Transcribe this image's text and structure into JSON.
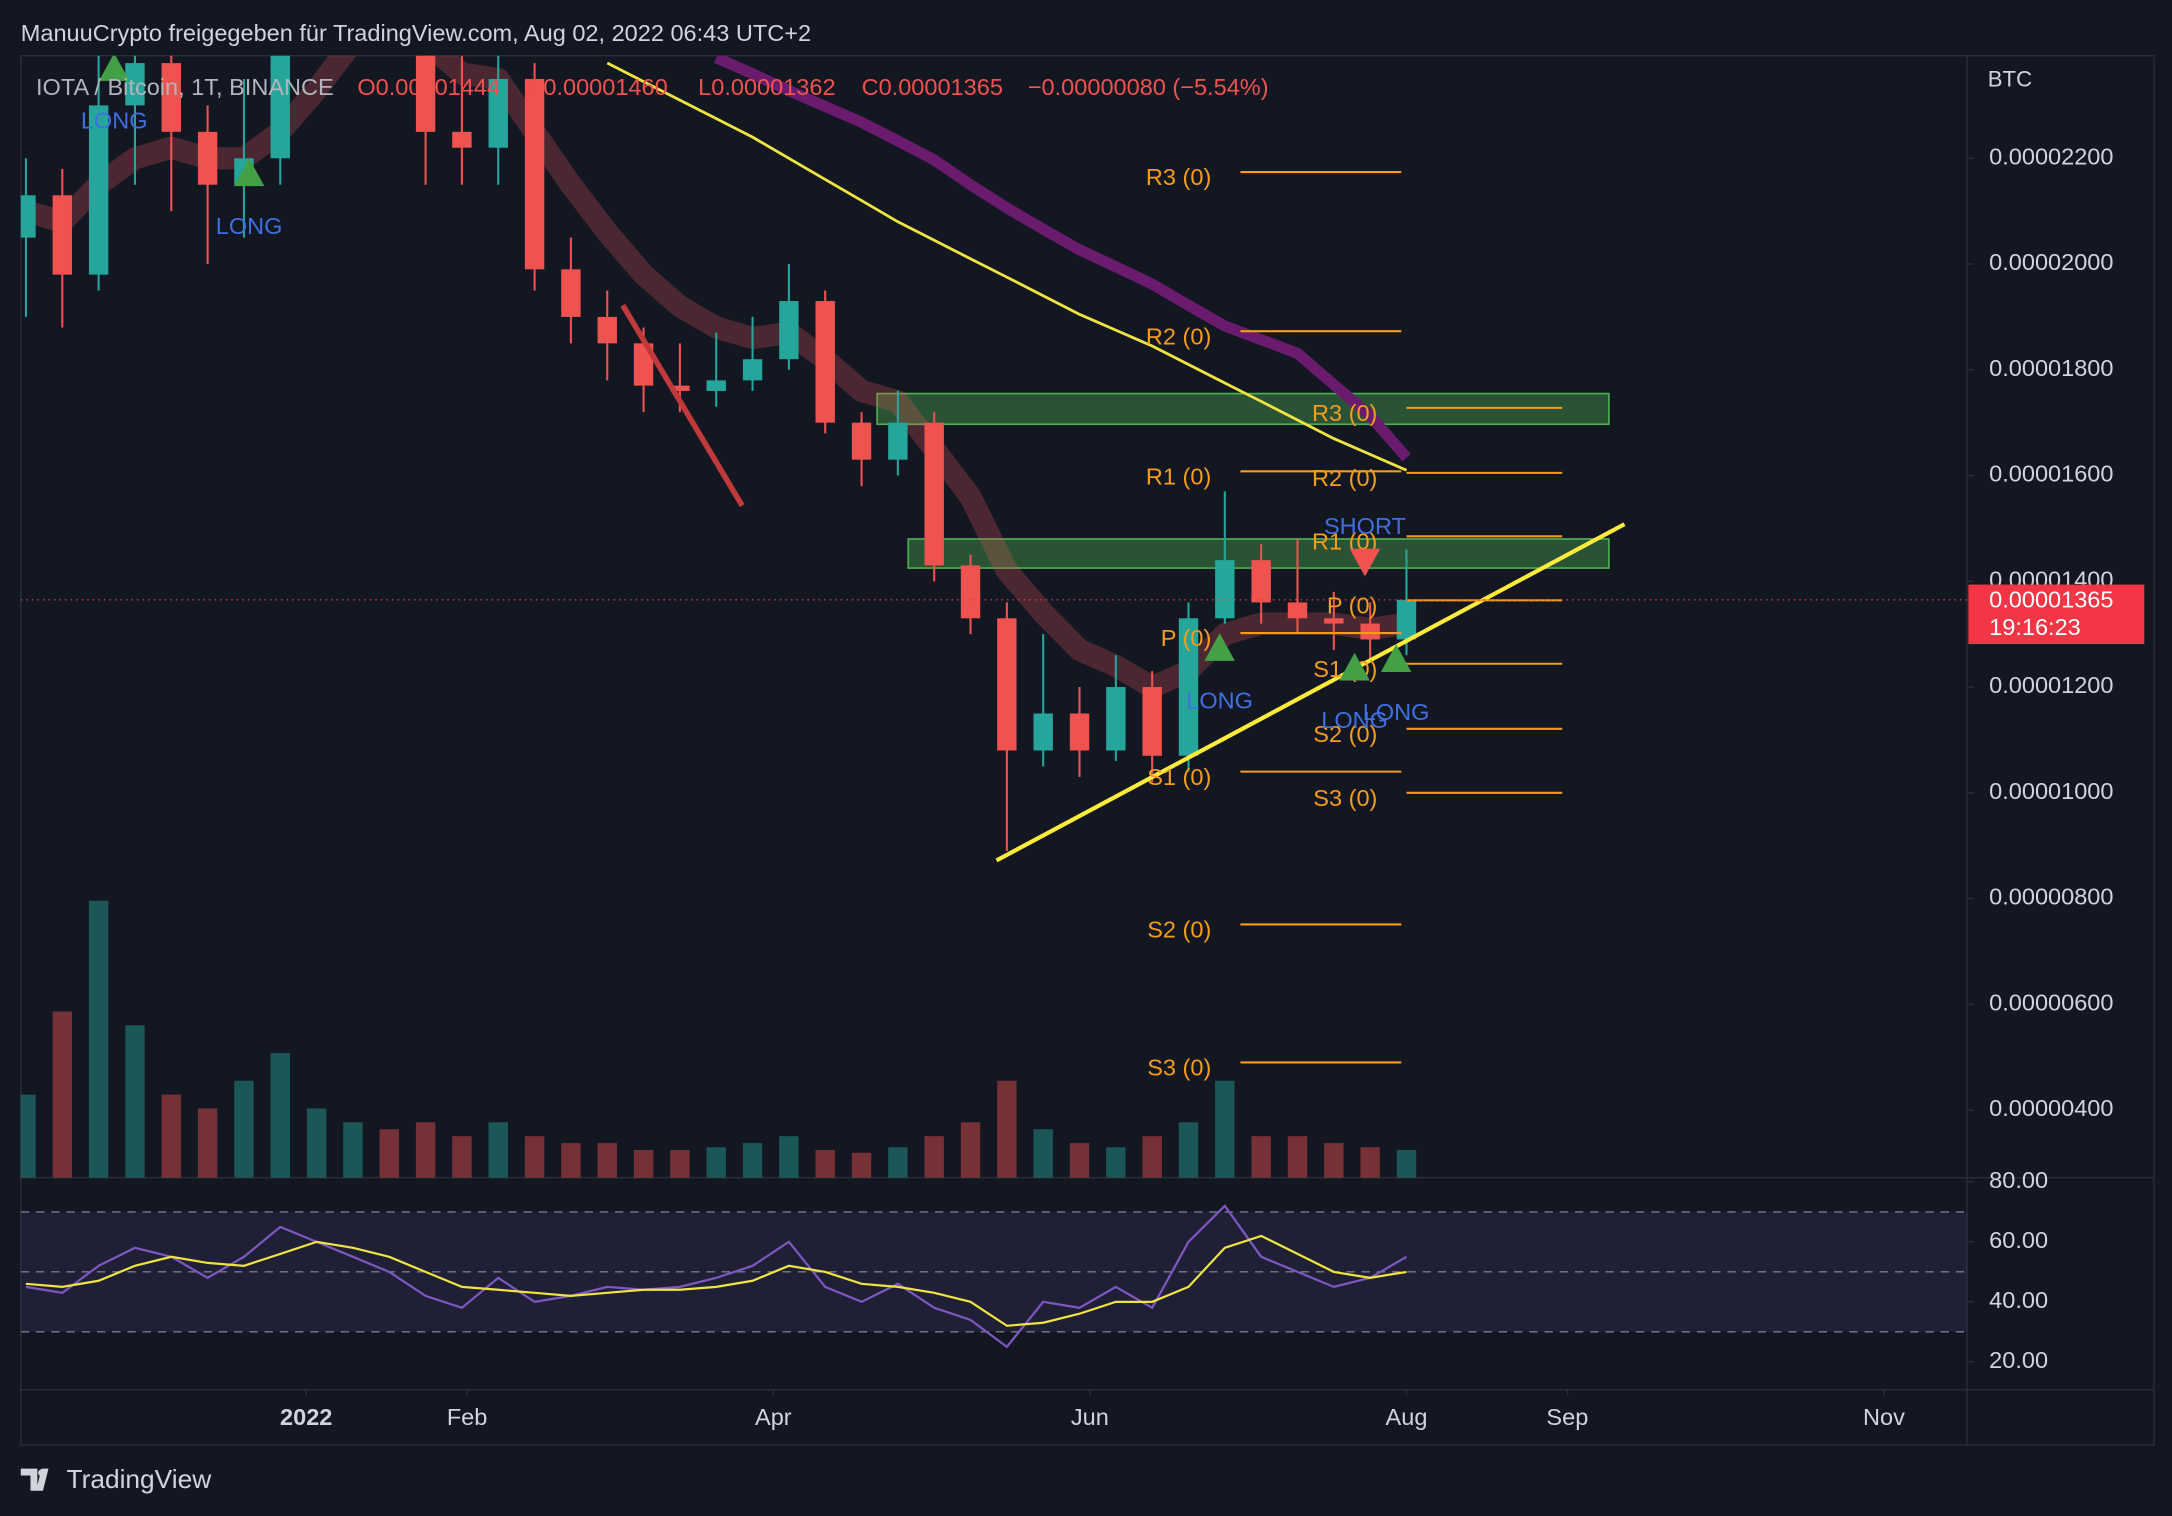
{
  "header": "ManuuCrypto freigegeben für TradingView.com, Aug 02, 2022 06:43 UTC+2",
  "footer": "TradingView",
  "chart_data": {
    "type": "candlestick",
    "legend": {
      "symbol": "IOTA / Bitcoin, 1T, BINANCE",
      "open": "O0.00001444",
      "high": "H0.00001460",
      "low": "L0.00001362",
      "close": "C0.00001365",
      "change": "−0.00000080 (−5.54%)"
    },
    "currency": "BTC",
    "up_color": "#26a69a",
    "down_color": "#ef5350",
    "x": [
      "2021-11-08",
      "2021-11-15",
      "2021-11-22",
      "2021-11-29",
      "2021-12-06",
      "2021-12-13",
      "2021-12-20",
      "2021-12-27",
      "2022-01-03",
      "2022-01-10",
      "2022-01-17",
      "2022-01-24",
      "2022-01-31",
      "2022-02-07",
      "2022-02-14",
      "2022-02-21",
      "2022-02-28",
      "2022-03-07",
      "2022-03-14",
      "2022-03-21",
      "2022-03-28",
      "2022-04-04",
      "2022-04-11",
      "2022-04-18",
      "2022-04-25",
      "2022-05-02",
      "2022-05-09",
      "2022-05-16",
      "2022-05-23",
      "2022-05-30",
      "2022-06-06",
      "2022-06-13",
      "2022-06-20",
      "2022-06-27",
      "2022-07-04",
      "2022-07-11",
      "2022-07-18",
      "2022-07-25",
      "2022-08-01"
    ],
    "open": [
      2.05e-05,
      2.13e-05,
      1.98e-05,
      2.3e-05,
      2.38e-05,
      2.25e-05,
      2.15e-05,
      2.2e-05,
      2.48e-05,
      2.6e-05,
      2.7e-05,
      2.65e-05,
      2.25e-05,
      2.22e-05,
      2.35e-05,
      1.99e-05,
      1.9e-05,
      1.85e-05,
      1.77e-05,
      1.76e-05,
      1.78e-05,
      1.82e-05,
      1.93e-05,
      1.7e-05,
      1.63e-05,
      1.7e-05,
      1.43e-05,
      1.33e-05,
      1.08e-05,
      1.15e-05,
      1.08e-05,
      1.2e-05,
      1.07e-05,
      1.33e-05,
      1.44e-05,
      1.36e-05,
      1.33e-05,
      1.32e-05,
      1.29e-05
    ],
    "high": [
      2.2e-05,
      2.18e-05,
      2.42e-05,
      2.5e-05,
      2.45e-05,
      2.3e-05,
      2.35e-05,
      2.6e-05,
      2.75e-05,
      2.85e-05,
      2.8e-05,
      2.7e-05,
      2.4e-05,
      2.45e-05,
      2.38e-05,
      2.05e-05,
      1.95e-05,
      1.88e-05,
      1.85e-05,
      1.87e-05,
      1.9e-05,
      2e-05,
      1.95e-05,
      1.72e-05,
      1.76e-05,
      1.72e-05,
      1.45e-05,
      1.36e-05,
      1.3e-05,
      1.2e-05,
      1.26e-05,
      1.23e-05,
      1.36e-05,
      1.57e-05,
      1.47e-05,
      1.48e-05,
      1.38e-05,
      1.36e-05,
      1.46e-05
    ],
    "low": [
      1.9e-05,
      1.88e-05,
      1.95e-05,
      2.15e-05,
      2.1e-05,
      2e-05,
      2.05e-05,
      2.15e-05,
      2.4e-05,
      2.5e-05,
      2.45e-05,
      2.15e-05,
      2.15e-05,
      2.15e-05,
      1.95e-05,
      1.85e-05,
      1.78e-05,
      1.72e-05,
      1.72e-05,
      1.73e-05,
      1.76e-05,
      1.8e-05,
      1.68e-05,
      1.58e-05,
      1.6e-05,
      1.4e-05,
      1.3e-05,
      8.9e-06,
      1.05e-05,
      1.03e-05,
      1.06e-05,
      1.02e-05,
      1.04e-05,
      1.32e-05,
      1.32e-05,
      1.3e-05,
      1.27e-05,
      1.25e-05,
      1.26e-05
    ],
    "close": [
      2.13e-05,
      1.98e-05,
      2.3e-05,
      2.38e-05,
      2.25e-05,
      2.15e-05,
      2.2e-05,
      2.48e-05,
      2.6e-05,
      2.7e-05,
      2.65e-05,
      2.25e-05,
      2.22e-05,
      2.35e-05,
      1.99e-05,
      1.9e-05,
      1.85e-05,
      1.77e-05,
      1.76e-05,
      1.78e-05,
      1.82e-05,
      1.93e-05,
      1.7e-05,
      1.63e-05,
      1.7e-05,
      1.43e-05,
      1.33e-05,
      1.08e-05,
      1.15e-05,
      1.08e-05,
      1.2e-05,
      1.07e-05,
      1.33e-05,
      1.44e-05,
      1.36e-05,
      1.33e-05,
      1.32e-05,
      1.29e-05,
      1.365e-05
    ],
    "volume": [
      60,
      120,
      200,
      110,
      60,
      50,
      70,
      90,
      50,
      40,
      35,
      40,
      30,
      40,
      30,
      25,
      25,
      20,
      20,
      22,
      25,
      30,
      20,
      18,
      22,
      30,
      40,
      70,
      35,
      25,
      22,
      30,
      40,
      70,
      30,
      30,
      25,
      22,
      20
    ],
    "ribbon": {
      "color": "#e0575b",
      "values": [
        2.1e-05,
        2.08e-05,
        2.15e-05,
        2.2e-05,
        2.22e-05,
        2.2e-05,
        2.2e-05,
        2.25e-05,
        2.33e-05,
        2.42e-05,
        2.48e-05,
        2.42e-05,
        2.36e-05,
        2.35e-05,
        2.25e-05,
        2.15e-05,
        2.06e-05,
        1.98e-05,
        1.92e-05,
        1.88e-05,
        1.86e-05,
        1.87e-05,
        1.82e-05,
        1.76e-05,
        1.74e-05,
        1.65e-05,
        1.56e-05,
        1.42e-05,
        1.34e-05,
        1.27e-05,
        1.24e-05,
        1.2e-05,
        1.23e-05,
        1.3e-05,
        1.32e-05,
        1.32e-05,
        1.32e-05,
        1.31e-05,
        1.32e-05
      ]
    },
    "moving_averages": [
      {
        "color": "#f0e442",
        "values": [
          null,
          null,
          null,
          null,
          null,
          null,
          null,
          null,
          null,
          null,
          null,
          null,
          null,
          null,
          null,
          null,
          2.38e-05,
          2.345e-05,
          2.31e-05,
          2.275e-05,
          2.24e-05,
          2.2e-05,
          2.16e-05,
          2.12e-05,
          2.08e-05,
          2.045e-05,
          2.01e-05,
          1.975e-05,
          1.94e-05,
          1.905e-05,
          1.875e-05,
          1.845e-05,
          1.81e-05,
          1.775e-05,
          1.74e-05,
          1.705e-05,
          1.67e-05,
          1.64e-05,
          1.61e-05
        ]
      },
      {
        "color": "#6a1b6e",
        "values": [
          null,
          null,
          null,
          null,
          null,
          null,
          null,
          null,
          null,
          null,
          null,
          null,
          null,
          null,
          null,
          null,
          null,
          null,
          null,
          2.39e-05,
          2.36e-05,
          2.328e-05,
          2.298e-05,
          2.268e-05,
          2.233e-05,
          2.197e-05,
          2.15e-05,
          2.106e-05,
          2.066e-05,
          2.027e-05,
          1.995e-05,
          1.962e-05,
          1.922e-05,
          1.883e-05,
          1.857e-05,
          1.831e-05,
          1.772e-05,
          1.713e-05,
          1.634e-05
        ]
      }
    ],
    "last_price": {
      "value": 1.365e-05,
      "countdown": "19:16:23",
      "color": "#f23645"
    },
    "zones": [
      {
        "start": "2022-04-21",
        "end": "2022-09-09",
        "top": 1.755e-05,
        "bottom": 1.697e-05
      },
      {
        "start": "2022-04-27",
        "end": "2022-09-09",
        "top": 1.48e-05,
        "bottom": 1.425e-05
      }
    ],
    "trend_lines": [
      {
        "color": "#ffeb3b",
        "start": "2022-05-14",
        "start_value": 8.72e-06,
        "end": "2022-09-12",
        "end_value": 1.508e-05
      },
      {
        "color": "#c0393b",
        "start": "2022-03-03",
        "start_value": 1.922e-05,
        "end": "2022-03-26",
        "end_value": 1.543e-05
      }
    ],
    "pivots": [
      {
        "start": "2022-06-30",
        "end": "2022-07-31",
        "levels": [
          {
            "label": "R3 (0)",
            "value": 2.174e-05
          },
          {
            "label": "R2 (0)",
            "value": 1.873e-05
          },
          {
            "label": "R1 (0)",
            "value": 1.608e-05
          },
          {
            "label": "P (0)",
            "value": 1.302e-05
          },
          {
            "label": "S1 (0)",
            "value": 1.04e-05
          },
          {
            "label": "S2 (0)",
            "value": 7.51e-06
          },
          {
            "label": "S3 (0)",
            "value": 4.9e-06
          }
        ]
      },
      {
        "start": "2022-08-01",
        "end": "2022-08-31",
        "levels": [
          {
            "label": "R3 (0)",
            "value": 1.728e-05
          },
          {
            "label": "R2 (0)",
            "value": 1.605e-05
          },
          {
            "label": "R1 (0)",
            "value": 1.485e-05
          },
          {
            "label": "P (0)",
            "value": 1.364e-05
          },
          {
            "label": "S1 (0)",
            "value": 1.244e-05
          },
          {
            "label": "S2 (0)",
            "value": 1.121e-05
          },
          {
            "label": "S3 (0)",
            "value": 1e-05
          }
        ]
      }
    ],
    "pivot_color": "#f59c1a",
    "signals": [
      {
        "label": "LONG",
        "date": "2021-11-25",
        "value": 2.37e-05
      },
      {
        "label": "LONG",
        "date": "2021-12-21",
        "value": 2.171e-05
      },
      {
        "label": "LONG",
        "date": "2022-06-26",
        "value": 1.273e-05
      },
      {
        "label": "LONG",
        "date": "2022-07-22",
        "value": 1.236e-05
      },
      {
        "label": "LONG",
        "date": "2022-07-30",
        "value": 1.252e-05
      },
      {
        "label": "SHORT",
        "date": "2022-07-24",
        "value": 1.438e-05
      }
    ],
    "xlim": [
      "2021-11-07",
      "2022-11-17"
    ],
    "xticks": [
      {
        "value": "2022-01-01",
        "label": "2022"
      },
      {
        "value": "2022-02-01",
        "label": "Feb"
      },
      {
        "value": "2022-04-01",
        "label": "Apr"
      },
      {
        "value": "2022-06-01",
        "label": "Jun"
      },
      {
        "value": "2022-08-01",
        "label": "Aug"
      },
      {
        "value": "2022-09-01",
        "label": "Sep"
      },
      {
        "value": "2022-11-01",
        "label": "Nov"
      }
    ],
    "ylim": [
      2.72e-06,
      2.394e-05
    ],
    "yticks": [
      {
        "value": 2.2e-05,
        "label": "0.00002200"
      },
      {
        "value": 2e-05,
        "label": "0.00002000"
      },
      {
        "value": 1.8e-05,
        "label": "0.00001800"
      },
      {
        "value": 1.6e-05,
        "label": "0.00001600"
      },
      {
        "value": 1.4e-05,
        "label": "0.00001400"
      },
      {
        "value": 1.2e-05,
        "label": "0.00001200"
      },
      {
        "value": 1e-05,
        "label": "0.00001000"
      },
      {
        "value": 8e-06,
        "label": "0.00000800"
      },
      {
        "value": 6e-06,
        "label": "0.00000600"
      },
      {
        "value": 4e-06,
        "label": "0.00000400"
      }
    ],
    "rsi": {
      "color": "#7e57c2",
      "ma_color": "#f0e442",
      "values": [
        45,
        43,
        52,
        58,
        55,
        48,
        55,
        65,
        60,
        55,
        50,
        42,
        38,
        48,
        40,
        42,
        45,
        44,
        45,
        48,
        52,
        60,
        45,
        40,
        46,
        38,
        34,
        25,
        40,
        38,
        45,
        38,
        60,
        72,
        55,
        50,
        45,
        48,
        55
      ],
      "ma": [
        46,
        45,
        47,
        52,
        55,
        53,
        52,
        56,
        60,
        58,
        55,
        50,
        45,
        44,
        43,
        42,
        43,
        44,
        44,
        45,
        47,
        52,
        50,
        46,
        45,
        43,
        40,
        32,
        33,
        36,
        40,
        40,
        45,
        58,
        62,
        56,
        50,
        48,
        50
      ],
      "bands": [
        30,
        50,
        70
      ],
      "ylim": [
        10.7,
        81.4
      ],
      "yticks": [
        {
          "value": 80,
          "label": "80.00"
        },
        {
          "value": 60,
          "label": "60.00"
        },
        {
          "value": 40,
          "label": "40.00"
        },
        {
          "value": 20,
          "label": "20.00"
        }
      ]
    }
  }
}
